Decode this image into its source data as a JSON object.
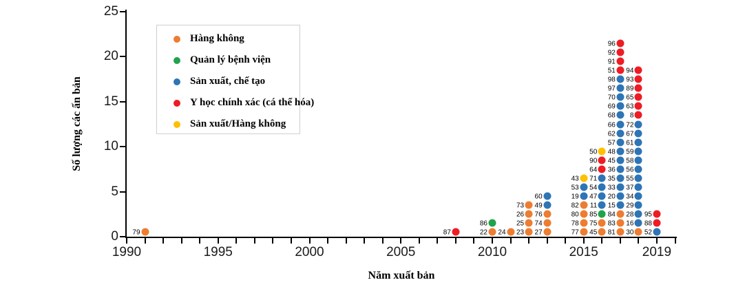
{
  "chart_data": {
    "type": "scatter",
    "title": "",
    "xlabel": "Năm xuất bản",
    "ylabel": "Số lượng các ấn bản",
    "x_range": [
      1990,
      2020
    ],
    "y_range": [
      0,
      25
    ],
    "grid": false,
    "legend_position": "top-left-inside",
    "y_ticks": [
      0,
      5,
      10,
      15,
      20,
      25
    ],
    "x_ticks_labeled": [
      {
        "year": 1990,
        "label": "1990"
      },
      {
        "year": 1995,
        "label": "1995"
      },
      {
        "year": 2000,
        "label": "2000"
      },
      {
        "year": 2005,
        "label": "2005"
      },
      {
        "year": 2010,
        "label": "2010"
      },
      {
        "year": 2015,
        "label": "2015"
      },
      {
        "year": 2019,
        "label": "2019"
      }
    ],
    "legend": [
      {
        "key": "aviation",
        "label": "Hàng không",
        "color": "#ED7D31"
      },
      {
        "key": "hospital",
        "label": "Quản lý bệnh viện",
        "color": "#21A34B"
      },
      {
        "key": "manufacturing",
        "label": "Sản xuất, chế tạo",
        "color": "#2E75B6"
      },
      {
        "key": "precision",
        "label": "Y học chính xác (cá thể hóa)",
        "color": "#EE1C25"
      },
      {
        "key": "manuf_aviation",
        "label": "Sản xuất/Hàng không",
        "color": "#FFC000"
      }
    ],
    "columns": [
      {
        "year": 1991,
        "dots": [
          {
            "label": "79",
            "key": "aviation"
          }
        ]
      },
      {
        "year": 2008,
        "dots": [
          {
            "label": "87",
            "key": "precision"
          }
        ]
      },
      {
        "year": 2010,
        "dots": [
          {
            "label": "22",
            "key": "aviation"
          },
          {
            "label": "86",
            "key": "hospital"
          }
        ]
      },
      {
        "year": 2011,
        "dots": [
          {
            "label": "24",
            "key": "aviation"
          }
        ]
      },
      {
        "year": 2012,
        "dots": [
          {
            "label": "23",
            "key": "aviation"
          },
          {
            "label": "25",
            "key": "aviation"
          },
          {
            "label": "26",
            "key": "aviation"
          },
          {
            "label": "73",
            "key": "aviation"
          }
        ]
      },
      {
        "year": 2013,
        "dots": [
          {
            "label": "27",
            "key": "aviation"
          },
          {
            "label": "74",
            "key": "aviation"
          },
          {
            "label": "76",
            "key": "aviation"
          },
          {
            "label": "49",
            "key": "manufacturing"
          },
          {
            "label": "60",
            "key": "manufacturing"
          }
        ]
      },
      {
        "year": 2015,
        "dots": [
          {
            "label": "77",
            "key": "aviation"
          },
          {
            "label": "78",
            "key": "aviation"
          },
          {
            "label": "80",
            "key": "aviation"
          },
          {
            "label": "82",
            "key": "aviation"
          },
          {
            "label": "19",
            "key": "manufacturing"
          },
          {
            "label": "53",
            "key": "manufacturing"
          },
          {
            "label": "43",
            "key": "manuf_aviation"
          }
        ]
      },
      {
        "year": 2016,
        "dots": [
          {
            "label": "45",
            "key": "aviation"
          },
          {
            "label": "75",
            "key": "aviation"
          },
          {
            "label": "85",
            "key": "hospital"
          },
          {
            "label": "11",
            "key": "manufacturing"
          },
          {
            "label": "47",
            "key": "manufacturing"
          },
          {
            "label": "54",
            "key": "manufacturing"
          },
          {
            "label": "71",
            "key": "manufacturing"
          },
          {
            "label": "64",
            "key": "precision"
          },
          {
            "label": "90",
            "key": "precision"
          },
          {
            "label": "50",
            "key": "manuf_aviation"
          }
        ]
      },
      {
        "year": 2017,
        "dots": [
          {
            "label": "81",
            "key": "aviation"
          },
          {
            "label": "83",
            "key": "aviation"
          },
          {
            "label": "84",
            "key": "aviation"
          },
          {
            "label": "15",
            "key": "manufacturing"
          },
          {
            "label": "20",
            "key": "manufacturing"
          },
          {
            "label": "33",
            "key": "manufacturing"
          },
          {
            "label": "35",
            "key": "manufacturing"
          },
          {
            "label": "36",
            "key": "manufacturing"
          },
          {
            "label": "45",
            "key": "manufacturing"
          },
          {
            "label": "48",
            "key": "manufacturing"
          },
          {
            "label": "57",
            "key": "manufacturing"
          },
          {
            "label": "62",
            "key": "manufacturing"
          },
          {
            "label": "66",
            "key": "manufacturing"
          },
          {
            "label": "68",
            "key": "manufacturing"
          },
          {
            "label": "69",
            "key": "manufacturing"
          },
          {
            "label": "70",
            "key": "manufacturing"
          },
          {
            "label": "97",
            "key": "manufacturing"
          },
          {
            "label": "98",
            "key": "manufacturing"
          },
          {
            "label": "51",
            "key": "precision"
          },
          {
            "label": "91",
            "key": "precision"
          },
          {
            "label": "92",
            "key": "precision"
          },
          {
            "label": "96",
            "key": "precision"
          }
        ]
      },
      {
        "year": 2018,
        "dots": [
          {
            "label": "30",
            "key": "aviation"
          },
          {
            "label": "16",
            "key": "manufacturing"
          },
          {
            "label": "28",
            "key": "manufacturing"
          },
          {
            "label": "29",
            "key": "manufacturing"
          },
          {
            "label": "34",
            "key": "manufacturing"
          },
          {
            "label": "37",
            "key": "manufacturing"
          },
          {
            "label": "55",
            "key": "manufacturing"
          },
          {
            "label": "56",
            "key": "manufacturing"
          },
          {
            "label": "58",
            "key": "manufacturing"
          },
          {
            "label": "59",
            "key": "manufacturing"
          },
          {
            "label": "61",
            "key": "manufacturing"
          },
          {
            "label": "67",
            "key": "manufacturing"
          },
          {
            "label": "72",
            "key": "manufacturing"
          },
          {
            "label": "8",
            "key": "precision"
          },
          {
            "label": "63",
            "key": "precision"
          },
          {
            "label": "65",
            "key": "precision"
          },
          {
            "label": "89",
            "key": "precision"
          },
          {
            "label": "93",
            "key": "precision"
          },
          {
            "label": "94",
            "key": "precision"
          }
        ]
      },
      {
        "year": 2019,
        "dots": [
          {
            "label": "52",
            "key": "manufacturing"
          },
          {
            "label": "88",
            "key": "precision"
          },
          {
            "label": "95",
            "key": "precision"
          }
        ]
      }
    ]
  }
}
